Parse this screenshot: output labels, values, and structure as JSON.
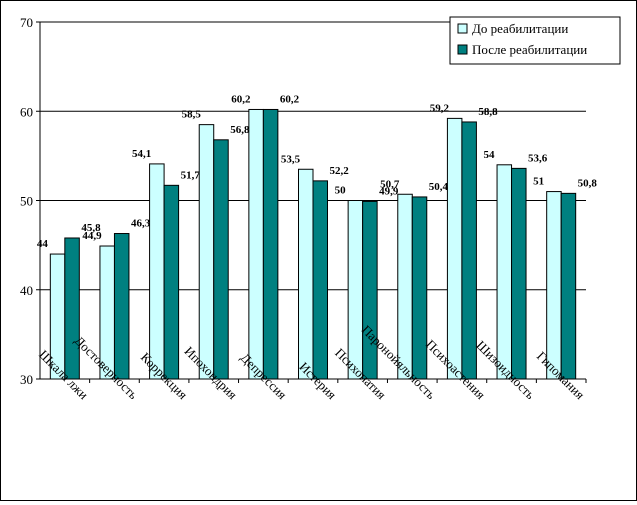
{
  "chart_data": {
    "type": "bar",
    "categories": [
      "Шкала лжи",
      "Достоверность",
      "Коррекция",
      "Ипохондрия",
      "Депрессия",
      "Истерия",
      "Психопатия",
      "Паронойяльность",
      "Психоастения",
      "Шизоидность",
      "Гипомания"
    ],
    "series": [
      {
        "name": "До реабилитации",
        "values": [
          44,
          44.9,
          54.1,
          58.5,
          60.2,
          53.5,
          50,
          50.7,
          59.2,
          54,
          51
        ],
        "labels": [
          "44",
          "44,9",
          "54,1",
          "58,5",
          "60,2",
          "53,5",
          "50",
          "50,7",
          "59,2",
          "54",
          "51"
        ],
        "color": "#ccffff"
      },
      {
        "name": "После реабилитации",
        "values": [
          45.8,
          46.3,
          51.7,
          56.8,
          60.2,
          52.2,
          49.9,
          50.4,
          58.8,
          53.6,
          50.8
        ],
        "labels": [
          "45,8",
          "46,3",
          "51,7",
          "56,8",
          "60,2",
          "52,2",
          "49,9",
          "50,4",
          "58,8",
          "53,6",
          "50,8"
        ],
        "color": "#008080"
      }
    ],
    "y_ticks": [
      "30",
      "40",
      "50",
      "60",
      "70"
    ],
    "ylim": [
      30,
      70
    ],
    "y_tick_step": 10,
    "grid": "horizontal",
    "legend": "top-right"
  }
}
